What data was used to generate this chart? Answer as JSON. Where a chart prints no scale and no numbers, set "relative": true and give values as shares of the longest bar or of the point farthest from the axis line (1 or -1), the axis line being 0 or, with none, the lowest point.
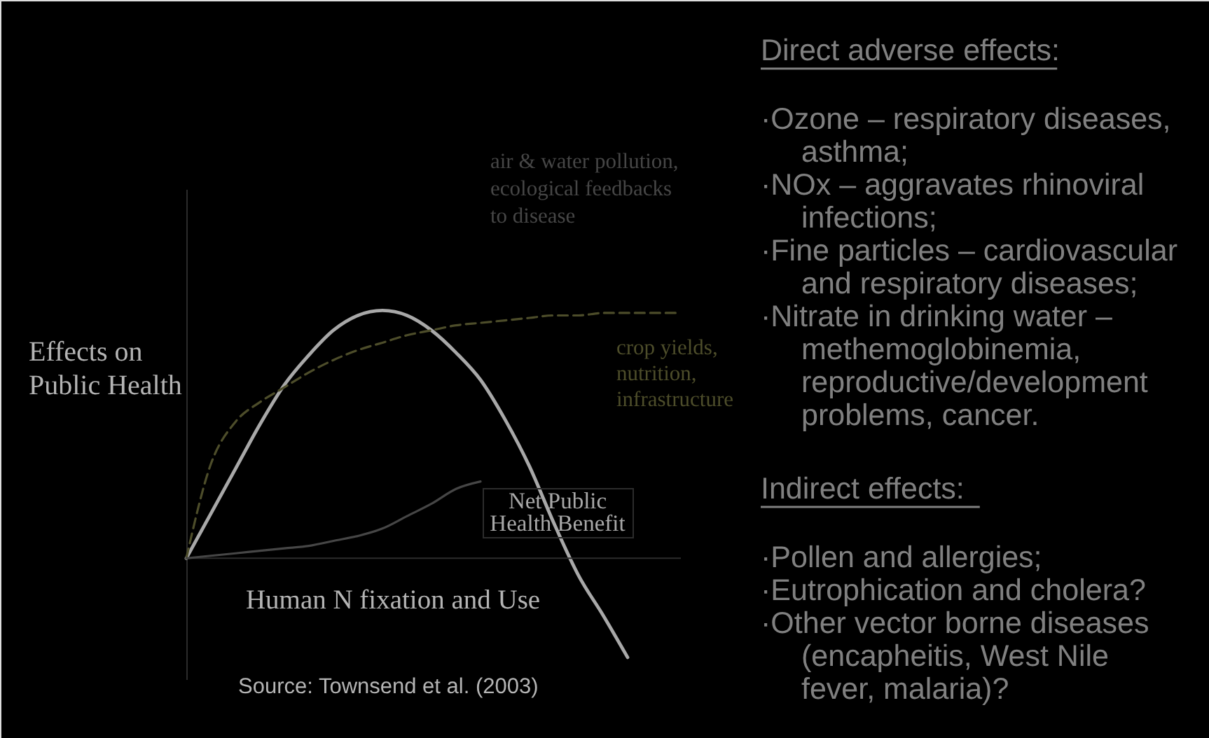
{
  "chart_data": [
    {
      "type": "line",
      "relative": true,
      "categories": [
        null,
        null,
        null,
        null,
        null,
        null,
        null,
        null,
        null,
        null,
        null,
        null,
        null,
        null,
        null,
        null,
        null,
        null,
        null,
        null,
        null
      ],
      "xlabel": "Human N fixation and Use",
      "ylabel": "Effects on Public Health",
      "series": [
        {
          "name": "Net Public Health Benefit",
          "color": "#a8a8a8",
          "line_style": "solid",
          "values": [
            0,
            0.18,
            0.36,
            0.54,
            0.7,
            0.82,
            0.92,
            0.98,
            1.0,
            0.98,
            0.92,
            0.83,
            0.72,
            0.56,
            0.37,
            0.14,
            -0.07,
            -0.23,
            -0.4,
            null,
            null
          ]
        },
        {
          "name": "crop yields, nutrition, infrastructure",
          "color": "#4d4d2a",
          "line_style": "dashed",
          "values": [
            0,
            0.38,
            0.55,
            0.63,
            0.69,
            0.75,
            0.8,
            0.84,
            0.87,
            0.9,
            0.92,
            0.94,
            0.95,
            0.96,
            0.97,
            0.98,
            0.98,
            0.99,
            0.99,
            0.99,
            0.99
          ]
        },
        {
          "name": "air & water pollution, ecological feedbacks to disease",
          "color": "#464646",
          "line_style": "solid",
          "values": [
            0,
            0.01,
            0.02,
            0.03,
            0.04,
            0.05,
            0.07,
            0.09,
            0.12,
            0.17,
            0.22,
            0.28,
            0.31,
            null,
            null,
            null,
            null,
            null,
            null,
            null,
            null
          ]
        }
      ],
      "annotations": [
        "Source: Townsend et al. (2003)"
      ]
    },
    {
      "type": "other",
      "title": "Direct adverse effects:",
      "annotations": [
        "·Ozone – respiratory diseases, asthma;",
        "·NOx – aggravates rhinoviral infections;",
        "·Fine particles – cardiovascular and respiratory diseases;",
        "·Nitrate in drinking water – methemoglobinemia, reproductive/development problems, cancer."
      ]
    },
    {
      "type": "other",
      "title": "Indirect effects:",
      "annotations": [
        "·Pollen and allergies;",
        "·Eutrophication and cholera?",
        "·Other vector borne diseases (encapheitis, West Nile fever, malaria)?"
      ]
    }
  ]
}
